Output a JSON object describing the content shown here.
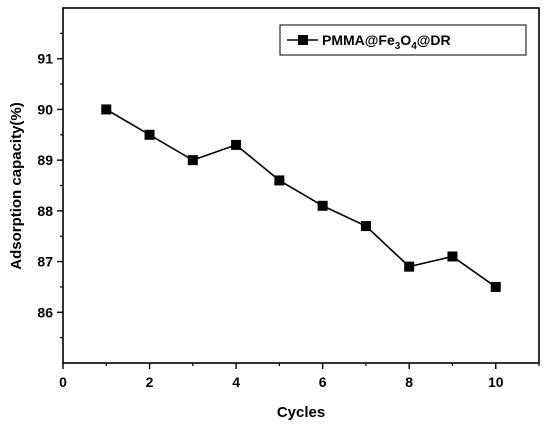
{
  "chart_data": {
    "type": "line",
    "xlabel": "Cycles",
    "ylabel": "Adsorption capacity(%)",
    "xlim": [
      0,
      11
    ],
    "ylim": [
      85,
      92
    ],
    "xticks": [
      "0",
      "2",
      "4",
      "6",
      "8",
      "10"
    ],
    "yticks": [
      "86",
      "87",
      "88",
      "89",
      "90",
      "91"
    ],
    "grid": false,
    "legend_position": "top-right",
    "series": [
      {
        "name": "PMMA@Fe3O4@DR",
        "x": [
          1,
          2,
          3,
          4,
          5,
          6,
          7,
          8,
          9,
          10
        ],
        "y": [
          90.0,
          89.5,
          89.0,
          89.3,
          88.6,
          88.1,
          87.7,
          86.9,
          87.1,
          86.5
        ],
        "color": "#000000",
        "marker": "square"
      }
    ]
  }
}
